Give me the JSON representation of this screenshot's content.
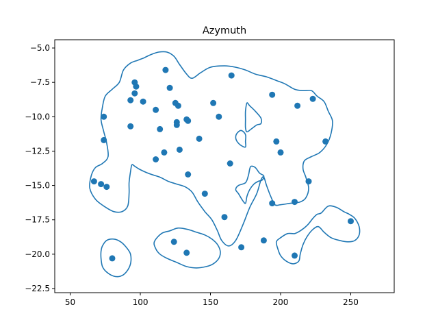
{
  "chart_data": {
    "type": "scatter",
    "title": "Azymuth",
    "xlabel": "",
    "ylabel": "",
    "xlim": [
      39,
      281
    ],
    "ylim": [
      -22.8,
      -4.4
    ],
    "xticks": [
      50,
      100,
      150,
      200,
      250
    ],
    "yticks": [
      -5.0,
      -7.5,
      -10.0,
      -12.5,
      -15.0,
      -17.5,
      -20.0,
      -22.5
    ],
    "xtick_labels": [
      "50",
      "100",
      "150",
      "200",
      "250"
    ],
    "ytick_labels": [
      "−5.0",
      "−7.5",
      "−10.0",
      "−12.5",
      "−15.0",
      "−17.5",
      "−20.0",
      "−22.5"
    ],
    "grid": false,
    "color": "#1f77b4",
    "series": [
      {
        "points": [
          [
            67,
            -14.7
          ],
          [
            72,
            -14.9
          ],
          [
            76,
            -15.1
          ],
          [
            74,
            -10.0
          ],
          [
            74,
            -11.7
          ],
          [
            80,
            -20.3
          ],
          [
            93,
            -8.8
          ],
          [
            93,
            -10.7
          ],
          [
            96,
            -8.3
          ],
          [
            96,
            -7.5
          ],
          [
            97,
            -7.8
          ],
          [
            102,
            -8.9
          ],
          [
            111,
            -9.5
          ],
          [
            111,
            -13.1
          ],
          [
            114,
            -10.9
          ],
          [
            117,
            -12.6
          ],
          [
            118,
            -6.6
          ],
          [
            121,
            -7.9
          ],
          [
            125,
            -9.0
          ],
          [
            126,
            -10.4
          ],
          [
            127,
            -9.2
          ],
          [
            126,
            -10.6
          ],
          [
            128,
            -12.4
          ],
          [
            133,
            -10.2
          ],
          [
            134,
            -10.3
          ],
          [
            134,
            -14.2
          ],
          [
            124,
            -19.1
          ],
          [
            133,
            -19.9
          ],
          [
            142,
            -11.6
          ],
          [
            146,
            -15.6
          ],
          [
            152,
            -9.0
          ],
          [
            156,
            -10.0
          ],
          [
            160,
            -17.3
          ],
          [
            164,
            -13.4
          ],
          [
            165,
            -7.0
          ],
          [
            172,
            -19.5
          ],
          [
            188,
            -19.0
          ],
          [
            194,
            -8.4
          ],
          [
            194,
            -16.3
          ],
          [
            197,
            -11.8
          ],
          [
            200,
            -12.6
          ],
          [
            210,
            -16.2
          ],
          [
            210,
            -20.1
          ],
          [
            212,
            -9.2
          ],
          [
            220,
            -14.7
          ],
          [
            223,
            -8.7
          ],
          [
            232,
            -11.8
          ],
          [
            250,
            -17.6
          ]
        ]
      }
    ],
    "contours": [
      {
        "name": "main",
        "points": [
          [
            73,
            -9.3
          ],
          [
            75,
            -8.5
          ],
          [
            80,
            -8.0
          ],
          [
            85,
            -7.5
          ],
          [
            88,
            -6.6
          ],
          [
            93,
            -6.1
          ],
          [
            98,
            -5.9
          ],
          [
            103,
            -5.7
          ],
          [
            107,
            -5.5
          ],
          [
            113,
            -5.3
          ],
          [
            119,
            -5.3
          ],
          [
            124,
            -5.6
          ],
          [
            128,
            -6.2
          ],
          [
            133,
            -6.9
          ],
          [
            137,
            -7.2
          ],
          [
            143,
            -6.8
          ],
          [
            150,
            -6.4
          ],
          [
            160,
            -6.3
          ],
          [
            168,
            -6.4
          ],
          [
            175,
            -6.6
          ],
          [
            182,
            -6.9
          ],
          [
            190,
            -7.1
          ],
          [
            198,
            -7.4
          ],
          [
            203,
            -7.6
          ],
          [
            210,
            -8.0
          ],
          [
            216,
            -8.1
          ],
          [
            222,
            -8.1
          ],
          [
            226,
            -8.5
          ],
          [
            231,
            -8.9
          ],
          [
            234,
            -9.6
          ],
          [
            237,
            -10.3
          ],
          [
            236,
            -11.2
          ],
          [
            233,
            -12.0
          ],
          [
            228,
            -12.6
          ],
          [
            222,
            -12.9
          ],
          [
            217,
            -13.2
          ],
          [
            216,
            -13.8
          ],
          [
            218,
            -14.4
          ],
          [
            220,
            -15.2
          ],
          [
            218,
            -15.9
          ],
          [
            214,
            -16.2
          ],
          [
            207,
            -16.3
          ],
          [
            200,
            -16.4
          ],
          [
            196,
            -16.4
          ],
          [
            193,
            -15.8
          ],
          [
            190,
            -15.0
          ],
          [
            188,
            -14.4
          ],
          [
            186,
            -14.6
          ],
          [
            183,
            -15.6
          ],
          [
            178,
            -16.6
          ],
          [
            173,
            -17.9
          ],
          [
            168,
            -19.0
          ],
          [
            163,
            -19.4
          ],
          [
            158,
            -19.0
          ],
          [
            155,
            -18.3
          ],
          [
            151,
            -17.5
          ],
          [
            146,
            -16.9
          ],
          [
            141,
            -16.2
          ],
          [
            137,
            -15.5
          ],
          [
            132,
            -15.1
          ],
          [
            126,
            -14.9
          ],
          [
            120,
            -14.7
          ],
          [
            114,
            -14.4
          ],
          [
            108,
            -14.2
          ],
          [
            103,
            -14.0
          ],
          [
            99,
            -13.8
          ],
          [
            96,
            -13.6
          ],
          [
            94,
            -13.5
          ],
          [
            93,
            -14.0
          ],
          [
            92,
            -14.8
          ],
          [
            92,
            -15.6
          ],
          [
            91,
            -16.5
          ],
          [
            87,
            -16.9
          ],
          [
            81,
            -16.9
          ],
          [
            74,
            -16.5
          ],
          [
            68,
            -16.0
          ],
          [
            64,
            -15.2
          ],
          [
            65,
            -14.3
          ],
          [
            68,
            -13.7
          ],
          [
            73,
            -13.4
          ],
          [
            77,
            -12.9
          ],
          [
            76,
            -11.9
          ],
          [
            74,
            -11.1
          ],
          [
            72,
            -10.2
          ]
        ]
      },
      {
        "name": "bottom-left-loop",
        "points": [
          [
            73,
            -19.4
          ],
          [
            76,
            -19.0
          ],
          [
            81,
            -18.9
          ],
          [
            86,
            -19.1
          ],
          [
            90,
            -19.5
          ],
          [
            93,
            -20.0
          ],
          [
            93,
            -20.7
          ],
          [
            90,
            -21.3
          ],
          [
            86,
            -21.6
          ],
          [
            81,
            -21.6
          ],
          [
            76,
            -21.3
          ],
          [
            73,
            -20.9
          ],
          [
            72,
            -20.3
          ],
          [
            72,
            -19.8
          ]
        ]
      },
      {
        "name": "bottom-center-loop",
        "points": [
          [
            110,
            -19.1
          ],
          [
            115,
            -18.5
          ],
          [
            121,
            -18.3
          ],
          [
            127,
            -18.1
          ],
          [
            134,
            -18.2
          ],
          [
            140,
            -18.4
          ],
          [
            146,
            -18.6
          ],
          [
            151,
            -18.9
          ],
          [
            155,
            -19.3
          ],
          [
            157,
            -19.8
          ],
          [
            156,
            -20.3
          ],
          [
            152,
            -20.7
          ],
          [
            147,
            -20.9
          ],
          [
            140,
            -21.0
          ],
          [
            133,
            -20.9
          ],
          [
            126,
            -20.6
          ],
          [
            119,
            -20.3
          ],
          [
            114,
            -20.0
          ],
          [
            111,
            -19.6
          ]
        ]
      },
      {
        "name": "right-loop",
        "points": [
          [
            197,
            -19.1
          ],
          [
            200,
            -18.8
          ],
          [
            205,
            -18.5
          ],
          [
            210,
            -18.5
          ],
          [
            214,
            -18.3
          ],
          [
            219,
            -17.9
          ],
          [
            223,
            -17.4
          ],
          [
            226,
            -17.1
          ],
          [
            229,
            -17.0
          ],
          [
            234,
            -16.5
          ],
          [
            240,
            -16.6
          ],
          [
            245,
            -16.9
          ],
          [
            249,
            -17.1
          ],
          [
            253,
            -17.4
          ],
          [
            256,
            -18.0
          ],
          [
            256,
            -18.6
          ],
          [
            253,
            -19.0
          ],
          [
            248,
            -19.1
          ],
          [
            242,
            -19.0
          ],
          [
            236,
            -18.8
          ],
          [
            231,
            -18.4
          ],
          [
            227,
            -18.0
          ],
          [
            223,
            -18.2
          ],
          [
            219,
            -18.7
          ],
          [
            216,
            -19.3
          ],
          [
            214,
            -20.0
          ],
          [
            213,
            -20.5
          ],
          [
            209,
            -20.7
          ],
          [
            204,
            -20.5
          ],
          [
            200,
            -20.1
          ],
          [
            198,
            -19.6
          ]
        ]
      },
      {
        "name": "inner-upper-hole",
        "points": [
          [
            176,
            -9.0
          ],
          [
            178,
            -9.2
          ],
          [
            182,
            -9.6
          ],
          [
            186,
            -10.1
          ],
          [
            186,
            -10.5
          ],
          [
            183,
            -10.6
          ],
          [
            179,
            -10.9
          ],
          [
            176,
            -11.1
          ],
          [
            175,
            -10.8
          ],
          [
            175,
            -10.2
          ],
          [
            175,
            -9.6
          ]
        ]
      },
      {
        "name": "inner-mid-hole",
        "points": [
          [
            169,
            -11.2
          ],
          [
            172,
            -11.0
          ],
          [
            175,
            -11.3
          ],
          [
            175,
            -11.8
          ],
          [
            175,
            -12.2
          ],
          [
            172,
            -12.1
          ],
          [
            169,
            -11.8
          ],
          [
            168,
            -11.5
          ]
        ]
      },
      {
        "name": "inner-lower-hole",
        "points": [
          [
            179,
            -13.6
          ],
          [
            182,
            -13.7
          ],
          [
            185,
            -14.1
          ],
          [
            188,
            -14.3
          ],
          [
            187,
            -14.6
          ],
          [
            184,
            -14.7
          ],
          [
            181,
            -14.9
          ],
          [
            178,
            -15.3
          ],
          [
            176,
            -15.8
          ],
          [
            175,
            -16.3
          ],
          [
            173,
            -16.1
          ],
          [
            170,
            -15.6
          ],
          [
            168,
            -15.3
          ],
          [
            170,
            -15.0
          ],
          [
            175,
            -14.8
          ],
          [
            177,
            -14.3
          ],
          [
            178,
            -13.8
          ]
        ]
      }
    ]
  }
}
